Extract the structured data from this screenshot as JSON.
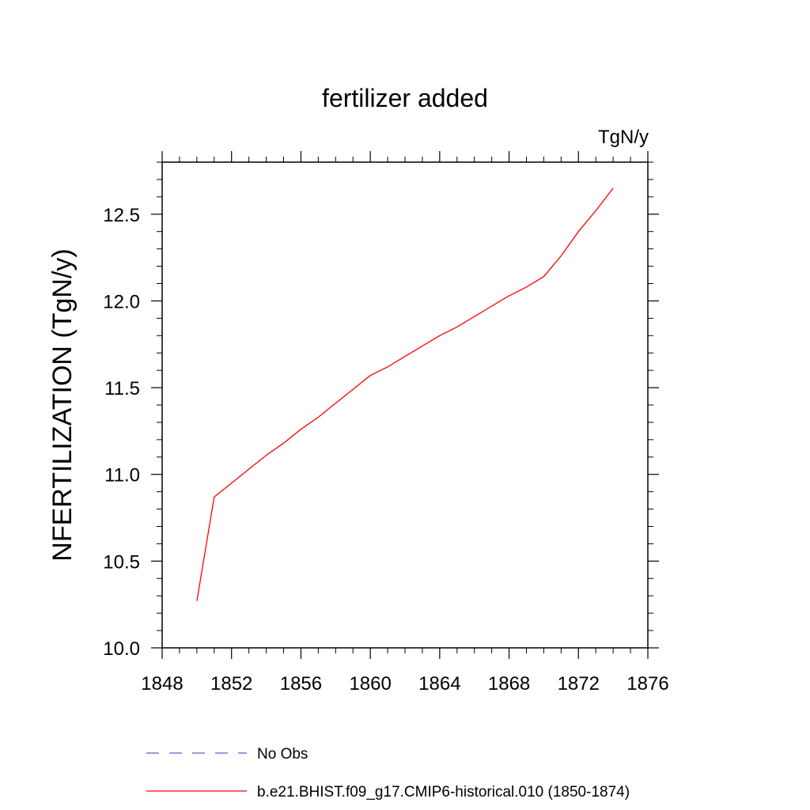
{
  "chart_data": {
    "type": "line",
    "title": "fertilizer added",
    "units_label": "TgN/y",
    "ylabel": "NFERTILIZATION  (TgN/y)",
    "xlabel": "",
    "xlim": [
      1848,
      1876
    ],
    "ylim": [
      10.0,
      12.8
    ],
    "x_ticks": [
      1848,
      1852,
      1856,
      1860,
      1864,
      1868,
      1872,
      1876
    ],
    "y_ticks": [
      "10.0",
      "10.5",
      "11.0",
      "11.5",
      "12.0",
      "12.5"
    ],
    "grid": false,
    "legend_placement": "bottom",
    "series": [
      {
        "name": "No Obs",
        "color": "#6a5acd",
        "dash": true,
        "x": [],
        "y": []
      },
      {
        "name": "b.e21.BHIST.f09_g17.CMIP6-historical.010 (1850-1874)",
        "color": "#ff0000",
        "dash": false,
        "x": [
          1850,
          1851,
          1852,
          1853,
          1854,
          1855,
          1856,
          1857,
          1858,
          1859,
          1860,
          1861,
          1862,
          1863,
          1864,
          1865,
          1866,
          1867,
          1868,
          1869,
          1870,
          1871,
          1872,
          1873,
          1874
        ],
        "y": [
          10.27,
          10.87,
          10.95,
          11.03,
          11.11,
          11.18,
          11.26,
          11.33,
          11.41,
          11.49,
          11.57,
          11.62,
          11.68,
          11.74,
          11.8,
          11.85,
          11.91,
          11.97,
          12.03,
          12.08,
          12.14,
          12.26,
          12.4,
          12.52,
          12.65
        ]
      }
    ]
  }
}
